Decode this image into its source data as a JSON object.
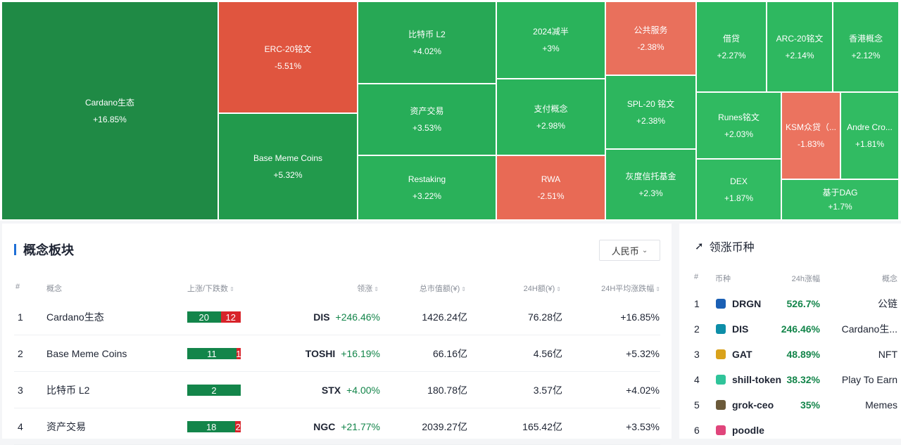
{
  "treemap": {
    "cells": [
      {
        "name": "Cardano生态",
        "pct": "+16.85%",
        "color": "#1f8a45"
      },
      {
        "name": "ERC-20铭文",
        "pct": "-5.51%",
        "color": "#e0553f"
      },
      {
        "name": "Base Meme Coins",
        "pct": "+5.32%",
        "color": "#229a4c"
      },
      {
        "name": "比特币 L2",
        "pct": "+4.02%",
        "color": "#27a855"
      },
      {
        "name": "资产交易",
        "pct": "+3.53%",
        "color": "#27ad58"
      },
      {
        "name": "Restaking",
        "pct": "+3.22%",
        "color": "#2ab15a"
      },
      {
        "name": "2024减半",
        "pct": "+3%",
        "color": "#2ab35b"
      },
      {
        "name": "支付概念",
        "pct": "+2.98%",
        "color": "#2ab35b"
      },
      {
        "name": "RWA",
        "pct": "-2.51%",
        "color": "#e86a55"
      },
      {
        "name": "公共服务",
        "pct": "-2.38%",
        "color": "#e9705c"
      },
      {
        "name": "SPL-20 铭文",
        "pct": "+2.38%",
        "color": "#2db65e"
      },
      {
        "name": "灰度信托基金",
        "pct": "+2.3%",
        "color": "#2db65e"
      },
      {
        "name": "借贷",
        "pct": "+2.27%",
        "color": "#2eb860"
      },
      {
        "name": "ARC-20铭文",
        "pct": "+2.14%",
        "color": "#2eb860"
      },
      {
        "name": "香港概念",
        "pct": "+2.12%",
        "color": "#2eb860"
      },
      {
        "name": "Runes铭文",
        "pct": "+2.03%",
        "color": "#30ba61"
      },
      {
        "name": "KSM众贷（...",
        "pct": "-1.83%",
        "color": "#eb735f"
      },
      {
        "name": "Andre Cro...",
        "pct": "+1.81%",
        "color": "#31bb62"
      },
      {
        "name": "DEX",
        "pct": "+1.87%",
        "color": "#31bb62"
      },
      {
        "name": "基于DAG",
        "pct": "+1.7%",
        "color": "#32bc63"
      }
    ]
  },
  "concepts": {
    "title": "概念板块",
    "currency": "人民币",
    "headers": {
      "idx": "#",
      "concept": "概念",
      "updown": "上涨/下跌数",
      "lead": "领涨",
      "mcap": "总市值额(¥)",
      "vol": "24H额(¥)",
      "avg": "24H平均涨跌幅"
    },
    "rows": [
      {
        "idx": "1",
        "name": "Cardano生态",
        "up": "20",
        "down": "12",
        "up_share": 0.625,
        "lead_sym": "DIS",
        "lead_pct": "+246.46%",
        "mcap": "1426.24亿",
        "vol": "76.28亿",
        "avg": "+16.85%"
      },
      {
        "idx": "2",
        "name": "Base Meme Coins",
        "up": "11",
        "down": "1",
        "up_share": 0.9167,
        "lead_sym": "TOSHI",
        "lead_pct": "+16.19%",
        "mcap": "66.16亿",
        "vol": "4.56亿",
        "avg": "+5.32%"
      },
      {
        "idx": "3",
        "name": "比特币 L2",
        "up": "2",
        "down": "",
        "up_share": 1.0,
        "lead_sym": "STX",
        "lead_pct": "+4.00%",
        "mcap": "180.78亿",
        "vol": "3.57亿",
        "avg": "+4.02%"
      },
      {
        "idx": "4",
        "name": "资产交易",
        "up": "18",
        "down": "2",
        "up_share": 0.9,
        "lead_sym": "NGC",
        "lead_pct": "+21.77%",
        "mcap": "2039.27亿",
        "vol": "165.42亿",
        "avg": "+3.53%"
      }
    ]
  },
  "leaders": {
    "title": "领涨币种",
    "headers": {
      "idx": "#",
      "coin": "币种",
      "chg": "24h涨幅",
      "concept": "概念"
    },
    "rows": [
      {
        "idx": "1",
        "sym": "DRGN",
        "chg": "526.7%",
        "concept": "公链",
        "icon_color": "#1a5fb4"
      },
      {
        "idx": "2",
        "sym": "DIS",
        "chg": "246.46%",
        "concept": "Cardano生...",
        "icon_color": "#0d8ea8"
      },
      {
        "idx": "3",
        "sym": "GAT",
        "chg": "48.89%",
        "concept": "NFT",
        "icon_color": "#d9a21b"
      },
      {
        "idx": "4",
        "sym": "shill-token",
        "chg": "38.32%",
        "concept": "Play To Earn",
        "icon_color": "#2fc49a"
      },
      {
        "idx": "5",
        "sym": "grok-ceo",
        "chg": "35%",
        "concept": "Memes",
        "icon_color": "#6b5a3a"
      },
      {
        "idx": "6",
        "sym": "poodle",
        "chg": "",
        "concept": "",
        "icon_color": "#e0457b"
      }
    ]
  }
}
